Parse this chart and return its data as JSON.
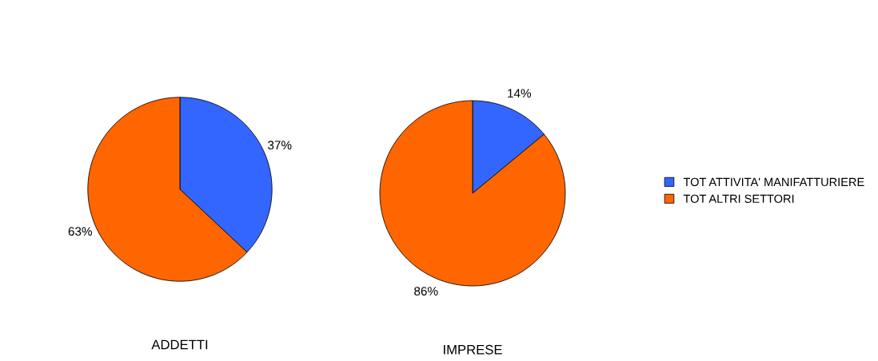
{
  "chart_data": [
    {
      "type": "pie",
      "title": "ADDETTI",
      "categories": [
        "TOT ATTIVITA' MANIFATTURIERE",
        "TOT ALTRI SETTORI"
      ],
      "values": [
        37,
        63
      ],
      "colors": [
        "#3366ff",
        "#ff6600"
      ],
      "value_labels": [
        "37%",
        "63%"
      ],
      "legend": "right"
    },
    {
      "type": "pie",
      "title": "IMPRESE",
      "categories": [
        null,
        null
      ],
      "values": [
        14,
        86
      ],
      "colors": [
        "#3366ff",
        "#ff6600"
      ],
      "value_labels": [
        "14%",
        "86%"
      ]
    }
  ]
}
